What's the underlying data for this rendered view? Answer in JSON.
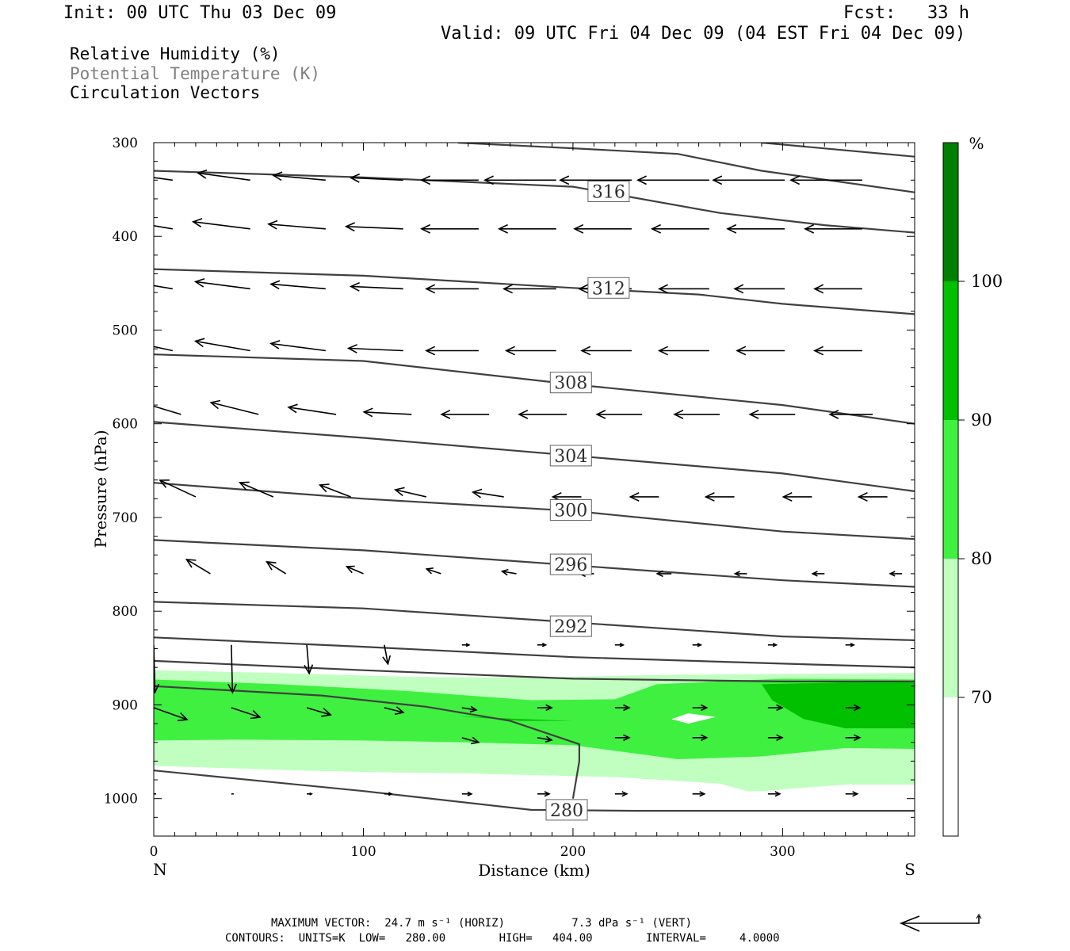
{
  "header": {
    "init": "Init: 00 UTC Thu 03 Dec 09",
    "fcst": "Fcst:   33 h",
    "valid": "Valid: 09 UTC Fri 04 Dec 09 (04 EST Fri 04 Dec 09)"
  },
  "legend": {
    "rh": "Relative Humidity (%)",
    "theta": "Potential Temperature (K)",
    "vectors": "Circulation Vectors"
  },
  "footer": {
    "max_vector": "MAXIMUM VECTOR:  24.7 m s⁻¹ (HORIZ)          7.3 dPa s⁻¹ (VERT)",
    "contours": "CONTOURS:  UNITS=K  LOW=   280.00        HIGH=   404.00        INTERVAL=     4.0000"
  },
  "colors": {
    "rh_70": "#c0ffc0",
    "rh_80": "#40f040",
    "rh_90": "#00c000",
    "rh_100": "#008000",
    "theta_line": "#404040",
    "vector": "#000000"
  },
  "chart_data": {
    "type": "cross-section",
    "xlabel": "Distance (km)",
    "ylabel": "Pressure (hPa)",
    "xlim": [
      0,
      363
    ],
    "ylim": [
      1040,
      300
    ],
    "x_ticks": [
      0,
      100,
      200,
      300
    ],
    "y_ticks": [
      300,
      400,
      500,
      600,
      700,
      800,
      900,
      1000
    ],
    "x_end_labels": {
      "left": "N",
      "right": "S"
    },
    "colorbar": {
      "unit": "%",
      "levels": [
        70,
        80,
        90,
        100
      ],
      "labels": [
        "70",
        "80",
        "90",
        "100"
      ]
    },
    "rh_regions": [
      {
        "level": 70,
        "points": [
          [
            0,
            863
          ],
          [
            60,
            866
          ],
          [
            120,
            870
          ],
          [
            180,
            871
          ],
          [
            240,
            868
          ],
          [
            300,
            867
          ],
          [
            363,
            866
          ],
          [
            363,
            985
          ],
          [
            330,
            985
          ],
          [
            290,
            992
          ],
          [
            270,
            993
          ],
          [
            250,
            983
          ],
          [
            210,
            978
          ],
          [
            150,
            973
          ],
          [
            110,
            972
          ],
          [
            70,
            970
          ],
          [
            0,
            965
          ]
        ]
      },
      {
        "level": 80,
        "points": [
          [
            0,
            873
          ],
          [
            60,
            878
          ],
          [
            120,
            885
          ],
          [
            180,
            895
          ],
          [
            220,
            894
          ],
          [
            240,
            878
          ],
          [
            300,
            872
          ],
          [
            363,
            873
          ],
          [
            363,
            947
          ],
          [
            330,
            946
          ],
          [
            290,
            955
          ],
          [
            250,
            958
          ],
          [
            200,
            943
          ],
          [
            150,
            940
          ],
          [
            100,
            938
          ],
          [
            40,
            937
          ],
          [
            0,
            938
          ]
        ]
      },
      {
        "level": 90,
        "points": [
          [
            290,
            878
          ],
          [
            330,
            876
          ],
          [
            363,
            876
          ],
          [
            363,
            925
          ],
          [
            330,
            925
          ],
          [
            310,
            915
          ],
          [
            295,
            895
          ]
        ]
      },
      {
        "level": 90,
        "points": [
          [
            145,
            912
          ],
          [
            175,
            917
          ],
          [
            200,
            917
          ],
          [
            175,
            915
          ]
        ]
      }
    ],
    "rh_holes": [
      {
        "points": [
          [
            247,
            915
          ],
          [
            255,
            909
          ],
          [
            268,
            913
          ],
          [
            255,
            920
          ]
        ]
      },
      {
        "points": [
          [
            125,
            980
          ],
          [
            165,
            974
          ],
          [
            220,
            977
          ],
          [
            270,
            984
          ],
          [
            290,
            996
          ],
          [
            250,
            1010
          ],
          [
            200,
            1015
          ],
          [
            150,
            1008
          ],
          [
            130,
            996
          ]
        ]
      }
    ],
    "theta_contours": [
      {
        "label": "316",
        "label_at": [
          217,
          352
        ],
        "points": [
          [
            145,
            300
          ],
          [
            200,
            306
          ],
          [
            250,
            312
          ],
          [
            290,
            330
          ],
          [
            363,
            353
          ]
        ]
      },
      {
        "label": null,
        "points": [
          [
            290,
            300
          ],
          [
            363,
            315
          ]
        ]
      },
      {
        "label": null,
        "points": [
          [
            0,
            330
          ],
          [
            100,
            337
          ],
          [
            200,
            347
          ],
          [
            270,
            375
          ],
          [
            320,
            388
          ],
          [
            363,
            396
          ]
        ]
      },
      {
        "label": "312",
        "label_at": [
          217,
          455
        ],
        "points": [
          [
            0,
            435
          ],
          [
            100,
            442
          ],
          [
            200,
            455
          ],
          [
            260,
            462
          ],
          [
            300,
            472
          ],
          [
            363,
            483
          ]
        ]
      },
      {
        "label": "308",
        "label_at": [
          199,
          556
        ],
        "points": [
          [
            0,
            526
          ],
          [
            100,
            533
          ],
          [
            200,
            558
          ],
          [
            300,
            580
          ],
          [
            363,
            600
          ]
        ]
      },
      {
        "label": "304",
        "label_at": [
          199,
          634
        ],
        "points": [
          [
            0,
            598
          ],
          [
            100,
            615
          ],
          [
            200,
            634
          ],
          [
            300,
            653
          ],
          [
            363,
            672
          ]
        ]
      },
      {
        "label": "300",
        "label_at": [
          199,
          692
        ],
        "points": [
          [
            0,
            663
          ],
          [
            100,
            680
          ],
          [
            200,
            693
          ],
          [
            300,
            715
          ],
          [
            363,
            723
          ]
        ]
      },
      {
        "label": "296",
        "label_at": [
          199,
          750
        ],
        "points": [
          [
            0,
            724
          ],
          [
            100,
            735
          ],
          [
            200,
            751
          ],
          [
            300,
            767
          ],
          [
            363,
            774
          ]
        ]
      },
      {
        "label": "292",
        "label_at": [
          199,
          816
        ],
        "points": [
          [
            0,
            790
          ],
          [
            100,
            797
          ],
          [
            200,
            812
          ],
          [
            300,
            827
          ],
          [
            363,
            831
          ]
        ]
      },
      {
        "label": null,
        "points": [
          [
            0,
            828
          ],
          [
            100,
            838
          ],
          [
            200,
            849
          ],
          [
            300,
            856
          ],
          [
            363,
            860
          ]
        ]
      },
      {
        "label": null,
        "points": [
          [
            0,
            853
          ],
          [
            100,
            863
          ],
          [
            200,
            872
          ],
          [
            300,
            875
          ],
          [
            363,
            875
          ]
        ]
      },
      {
        "label": null,
        "points": [
          [
            0,
            880
          ],
          [
            80,
            890
          ],
          [
            130,
            902
          ],
          [
            170,
            917
          ],
          [
            203,
            942
          ],
          [
            203,
            960
          ],
          [
            200,
            1000
          ]
        ]
      },
      {
        "label": "280",
        "label_at": [
          197,
          1012
        ],
        "points": [
          [
            0,
            970
          ],
          [
            100,
            992
          ],
          [
            180,
            1012
          ],
          [
            230,
            1013
          ],
          [
            363,
            1013
          ]
        ]
      }
    ],
    "vector_rows": [
      {
        "p": 340,
        "x": [
          9,
          46,
          82,
          119,
          155,
          192,
          228,
          265,
          301,
          338
        ],
        "u": [
          -2.2,
          -2.2,
          -2.2,
          -2.2,
          -2.4,
          -3.0,
          -3.0,
          -3.0,
          -3.0,
          -3.0
        ],
        "w": [
          0.0003,
          0.0003,
          0.0002,
          0.0001,
          0,
          0,
          0,
          0,
          0,
          0
        ]
      },
      {
        "p": 392,
        "x": [
          9,
          46,
          82,
          119,
          155,
          192,
          228,
          265,
          301,
          338
        ],
        "u": [
          -2.4,
          -2.4,
          -2.4,
          -2.4,
          -2.4,
          -2.4,
          -2.4,
          -2.4,
          -2.4,
          -2.4
        ],
        "w": [
          0.0004,
          0.0003,
          0.0002,
          0.0001,
          0,
          0,
          0,
          0,
          0,
          0
        ]
      },
      {
        "p": 456,
        "x": [
          9,
          46,
          82,
          119,
          155,
          192,
          228,
          265,
          301,
          338
        ],
        "u": [
          -2.4,
          -2.3,
          -2.3,
          -2.2,
          -2.2,
          -2.2,
          -2.2,
          -2.1,
          -2.1,
          -2.0
        ],
        "w": [
          0.0004,
          0.0003,
          0.0002,
          0.0001,
          0,
          0,
          0,
          0,
          0,
          0
        ]
      },
      {
        "p": 522,
        "x": [
          9,
          46,
          82,
          119,
          155,
          192,
          228,
          265,
          301,
          338
        ],
        "u": [
          -2.3,
          -2.3,
          -2.3,
          -2.3,
          -2.2,
          -2.1,
          -2.1,
          -2.1,
          -2.0,
          -2.0
        ],
        "w": [
          0.0005,
          0.0004,
          0.0003,
          0.0001,
          0,
          0,
          0,
          0,
          0,
          0
        ]
      },
      {
        "p": 590,
        "x": [
          13,
          50,
          87,
          123,
          160,
          197,
          233,
          270,
          306,
          343
        ],
        "u": [
          -2.0,
          -2.0,
          -2.0,
          -2.0,
          -2.0,
          -2.0,
          -1.9,
          -1.9,
          -1.9,
          -1.8
        ],
        "w": [
          0.0006,
          0.0005,
          0.0003,
          0.0001,
          0,
          0,
          0,
          0,
          0,
          0
        ]
      },
      {
        "p": 678,
        "x": [
          20,
          57,
          94,
          130,
          167,
          204,
          241,
          277,
          314,
          350
        ],
        "u": [
          -1.5,
          -1.4,
          -1.3,
          -1.3,
          -1.3,
          -1.2,
          -1.2,
          -1.2,
          -1.2,
          -1.2
        ],
        "w": [
          0.0007,
          0.0006,
          0.0005,
          0.0003,
          0.0002,
          0,
          0,
          0,
          0,
          0
        ]
      },
      {
        "p": 760,
        "x": [
          27,
          63,
          100,
          137,
          173,
          210,
          247,
          283,
          320,
          357
        ],
        "u": [
          -1.0,
          -0.8,
          -0.7,
          -0.6,
          -0.6,
          -0.6,
          -0.6,
          -0.5,
          -0.5,
          -0.5
        ],
        "w": [
          0.0006,
          0.0005,
          0.0003,
          0.0002,
          0.0001,
          0,
          0,
          0,
          0,
          0
        ]
      },
      {
        "p": 836,
        "x": [
          0,
          37,
          73,
          110,
          147,
          183,
          220,
          257,
          293,
          330
        ],
        "u": [
          0.05,
          0.05,
          0.1,
          0.15,
          0.3,
          0.35,
          0.35,
          0.35,
          0.35,
          0.35
        ],
        "w": [
          -0.002,
          -0.002,
          -0.0012,
          -0.0008,
          0,
          0,
          0,
          0,
          0,
          0
        ]
      },
      {
        "p": 903,
        "x": [
          0,
          37,
          73,
          110,
          147,
          183,
          220,
          257,
          293,
          330
        ],
        "u": [
          1.4,
          1.2,
          1.0,
          0.8,
          0.6,
          0.6,
          0.6,
          0.6,
          0.6,
          0.6
        ],
        "w": [
          -0.0005,
          -0.0004,
          -0.0003,
          -0.0002,
          -0.0001,
          0,
          0,
          0,
          0,
          0
        ]
      },
      {
        "p": 935,
        "x": [
          147,
          183,
          220,
          257,
          293,
          330
        ],
        "u": [
          0.7,
          0.6,
          0.6,
          0.6,
          0.6,
          0.6
        ],
        "w": [
          -0.0002,
          -0.0001,
          0,
          0,
          0,
          0
        ]
      },
      {
        "p": 995,
        "x": [
          0,
          37,
          73,
          110,
          147,
          183,
          220,
          257,
          293,
          330
        ],
        "u": [
          0.1,
          0.1,
          0.2,
          0.3,
          0.4,
          0.5,
          0.5,
          0.5,
          0.5,
          0.5
        ],
        "w": [
          0,
          0,
          0,
          0,
          0,
          0,
          0,
          0,
          0,
          0
        ]
      }
    ],
    "reference_vector": {
      "u": -24.7,
      "w": 7.3
    }
  }
}
